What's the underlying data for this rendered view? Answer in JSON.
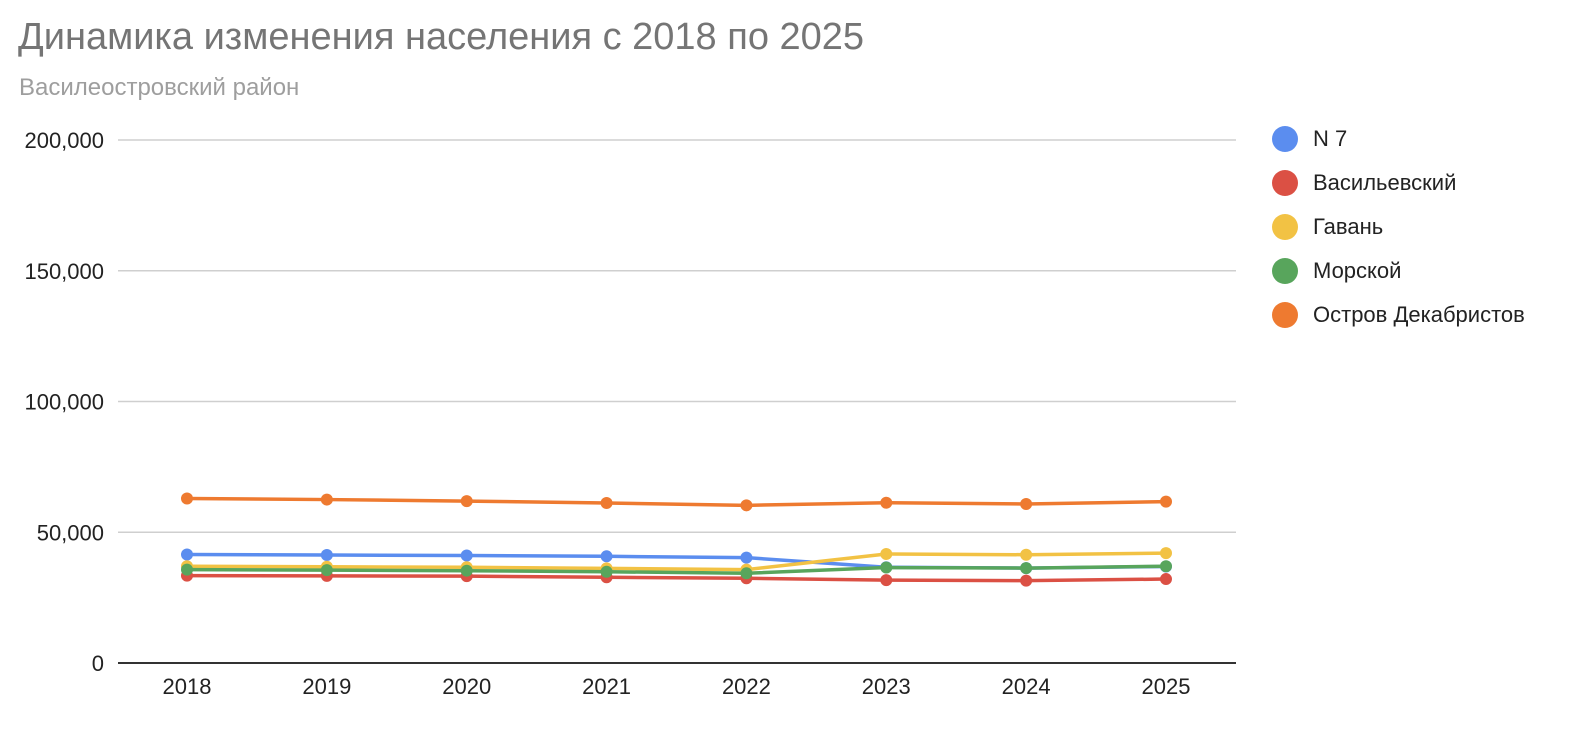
{
  "header": {
    "title": "Динамика изменения населения с 2018 по 2025",
    "subtitle": "Василеостровский район"
  },
  "chart_data": {
    "type": "line",
    "title": "Динамика изменения населения с 2018 по 2025",
    "subtitle": "Василеостровский район",
    "xlabel": "",
    "ylabel": "",
    "categories": [
      "2018",
      "2019",
      "2020",
      "2021",
      "2022",
      "2023",
      "2024",
      "2025"
    ],
    "ylim": [
      0,
      200000
    ],
    "yticks": [
      0,
      50000,
      100000,
      150000,
      200000
    ],
    "ytick_labels": [
      "0",
      "50,000",
      "100,000",
      "150,000",
      "200,000"
    ],
    "grid": true,
    "legend_position": "right",
    "series": [
      {
        "name": "N 7",
        "color": "#5b8def",
        "values": [
          41500,
          41300,
          41100,
          40800,
          40300,
          36600,
          36300,
          36900
        ]
      },
      {
        "name": "Васильевский",
        "color": "#db5044",
        "values": [
          33400,
          33300,
          33200,
          32800,
          32400,
          31700,
          31500,
          32100
        ]
      },
      {
        "name": "Гавань",
        "color": "#f2c244",
        "values": [
          37000,
          36800,
          36600,
          36200,
          35700,
          41700,
          41400,
          42000
        ]
      },
      {
        "name": "Морской",
        "color": "#58a55c",
        "values": [
          35700,
          35500,
          35300,
          34900,
          34300,
          36500,
          36300,
          37000
        ]
      },
      {
        "name": "Остров Декабристов",
        "color": "#ee7a30",
        "values": [
          62900,
          62500,
          61900,
          61200,
          60300,
          61300,
          60800,
          61700
        ]
      }
    ]
  }
}
